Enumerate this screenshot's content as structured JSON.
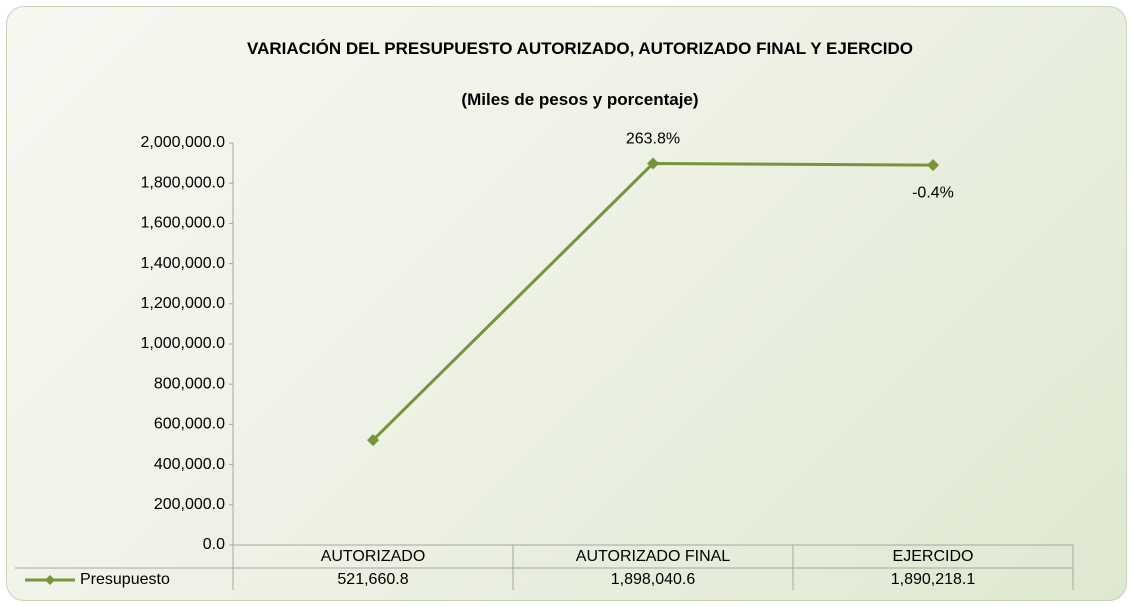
{
  "chart_data": {
    "type": "line",
    "title": "VARIACIÓN DEL PRESUPUESTO AUTORIZADO, AUTORIZADO FINAL Y EJERCIDO",
    "subtitle": "(Miles de pesos y porcentaje)",
    "categories": [
      "AUTORIZADO",
      "AUTORIZADO FINAL",
      "EJERCIDO"
    ],
    "series": [
      {
        "name": "Presupuesto",
        "color": "#77933c",
        "values": [
          521660.8,
          1898040.6,
          1890218.1
        ],
        "value_labels": [
          "521,660.8",
          "1,898,040.6",
          "1,890,218.1"
        ]
      }
    ],
    "annotations": [
      null,
      "263.8%",
      "-0.4%"
    ],
    "ylim": [
      0,
      2000000
    ],
    "yticks": [
      {
        "value": 0,
        "label": "0.0"
      },
      {
        "value": 200000,
        "label": "200,000.0"
      },
      {
        "value": 400000,
        "label": "400,000.0"
      },
      {
        "value": 600000,
        "label": "600,000.0"
      },
      {
        "value": 800000,
        "label": "800,000.0"
      },
      {
        "value": 1000000,
        "label": "1,000,000.0"
      },
      {
        "value": 1200000,
        "label": "1,200,000.0"
      },
      {
        "value": 1400000,
        "label": "1,400,000.0"
      },
      {
        "value": 1600000,
        "label": "1,600,000.0"
      },
      {
        "value": 1800000,
        "label": "1,800,000.0"
      },
      {
        "value": 2000000,
        "label": "2,000,000.0"
      }
    ],
    "grid": false,
    "legend": "bottom"
  }
}
